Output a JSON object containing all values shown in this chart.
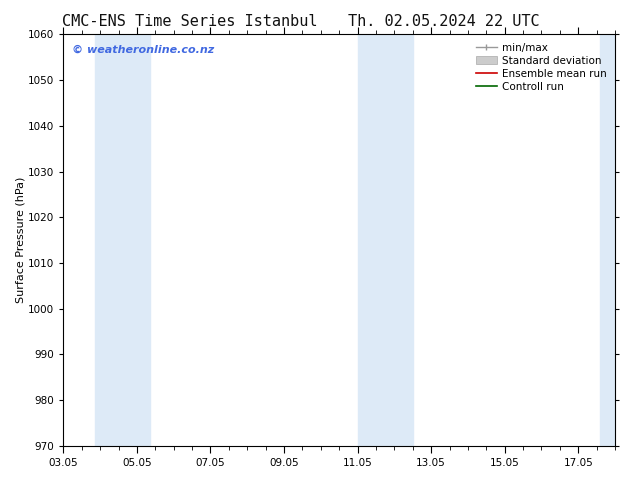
{
  "title_left": "CMC-ENS Time Series Istanbul",
  "title_right": "Th. 02.05.2024 22 UTC",
  "ylabel": "Surface Pressure (hPa)",
  "ylim": [
    970,
    1060
  ],
  "yticks": [
    970,
    980,
    990,
    1000,
    1010,
    1020,
    1030,
    1040,
    1050,
    1060
  ],
  "xlim_start": 0,
  "xlim_end": 15,
  "xtick_labels": [
    "03.05",
    "05.05",
    "07.05",
    "09.05",
    "11.05",
    "13.05",
    "15.05",
    "17.05"
  ],
  "xtick_positions": [
    0,
    2,
    4,
    6,
    8,
    10,
    12,
    14
  ],
  "background_color": "#ffffff",
  "plot_bg_color": "#ffffff",
  "shaded_bands": [
    {
      "xmin": 0.85,
      "xmax": 2.35,
      "color": "#ddeaf7"
    },
    {
      "xmin": 8.0,
      "xmax": 9.5,
      "color": "#ddeaf7"
    },
    {
      "xmin": 14.6,
      "xmax": 15.0,
      "color": "#ddeaf7"
    }
  ],
  "watermark_text": "© weatheronline.co.nz",
  "watermark_color": "#4169e1",
  "watermark_fontsize": 8,
  "title_fontsize": 11,
  "axis_label_fontsize": 8,
  "tick_fontsize": 7.5,
  "legend_fontsize": 7.5
}
